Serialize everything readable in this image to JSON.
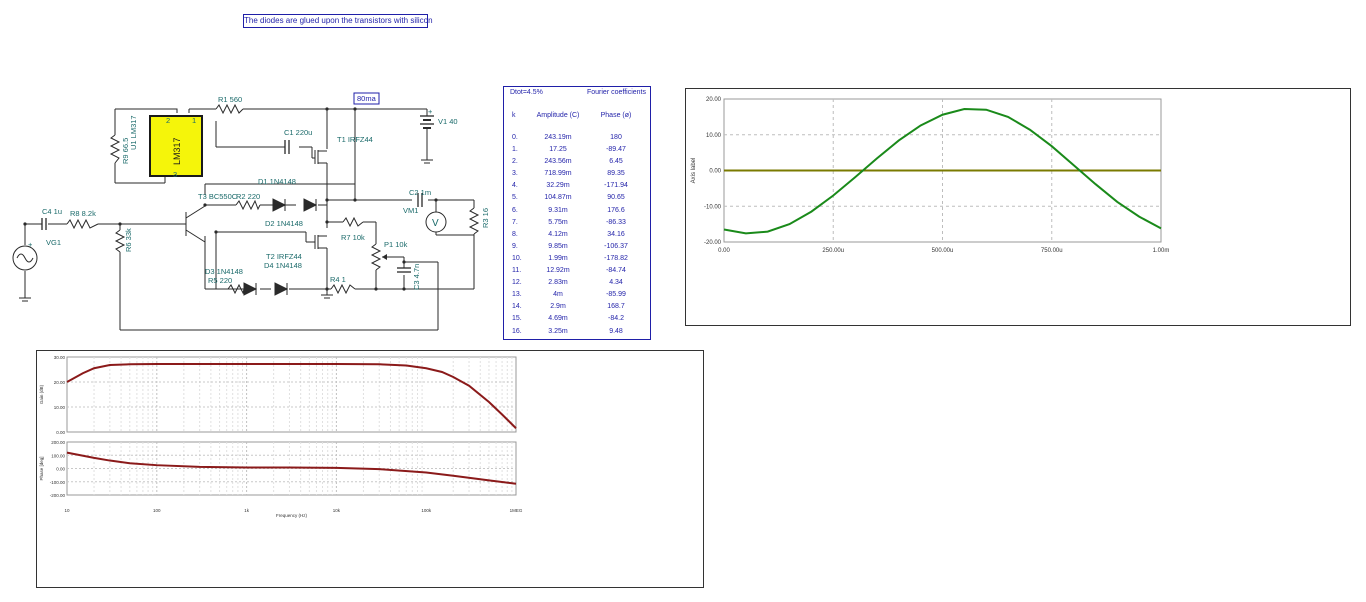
{
  "note": "The diodes are glued upon the transistors with silicon",
  "schematic": {
    "current_label": "80ma",
    "ic_label": "LM317",
    "labels": {
      "u1": "U1 LM317",
      "r9": "R9 66.5",
      "r1": "R1 560",
      "c1": "C1 220u",
      "t1": "T1 IRFZ44",
      "v1": "V1 40",
      "d1": "D1 1N4148",
      "t3": "T3 BC550C",
      "r2": "R2 220",
      "c2": "C2 1m",
      "vm1": "VM1",
      "r3": "R3 16",
      "c4": "C4 1u",
      "r8": "R8 8.2k",
      "vg1": "VG1",
      "r6": "R6 33k",
      "d2": "D2 1N4148",
      "r7": "R7 10k",
      "p1": "P1 10k",
      "t2": "T2 IRFZ44",
      "d3": "D3 1N4148",
      "d4": "D4 1N4148",
      "r5": "R5 220",
      "r4": "R4 1",
      "c3": "C3 4.7n",
      "pin2": "2",
      "pin1": "1",
      "pin3": "3",
      "v1plus": "+",
      "vgplus": "+",
      "vmsym": "V"
    }
  },
  "fourier": {
    "dtot": "Dtot=4.5%",
    "title": "Fourier coefficients",
    "headers": {
      "k": "k",
      "amplitude": "Amplitude (C)",
      "phase": "Phase (ø)"
    },
    "rows": [
      {
        "k": "0.",
        "amp": "243.19m",
        "phase": "180"
      },
      {
        "k": "1.",
        "amp": "17.25",
        "phase": "-89.47"
      },
      {
        "k": "2.",
        "amp": "243.56m",
        "phase": "6.45"
      },
      {
        "k": "3.",
        "amp": "718.99m",
        "phase": "89.35"
      },
      {
        "k": "4.",
        "amp": "32.29m",
        "phase": "-171.94"
      },
      {
        "k": "5.",
        "amp": "104.87m",
        "phase": "90.65"
      },
      {
        "k": "6.",
        "amp": "9.31m",
        "phase": "176.6"
      },
      {
        "k": "7.",
        "amp": "5.75m",
        "phase": "-86.33"
      },
      {
        "k": "8.",
        "amp": "4.12m",
        "phase": "34.16"
      },
      {
        "k": "9.",
        "amp": "9.85m",
        "phase": "-106.37"
      },
      {
        "k": "10.",
        "amp": "1.99m",
        "phase": "-178.82"
      },
      {
        "k": "11.",
        "amp": "12.92m",
        "phase": "-84.74"
      },
      {
        "k": "12.",
        "amp": "2.83m",
        "phase": "4.34"
      },
      {
        "k": "13.",
        "amp": "4m",
        "phase": "-85.99"
      },
      {
        "k": "14.",
        "amp": "2.9m",
        "phase": "168.7"
      },
      {
        "k": "15.",
        "amp": "4.69m",
        "phase": "-84.2"
      },
      {
        "k": "16.",
        "amp": "3.25m",
        "phase": "9.48"
      }
    ]
  },
  "chart_data": [
    {
      "type": "line",
      "ylabel": "Axis label",
      "xlim": [
        0,
        1000
      ],
      "ylim": [
        -20,
        20
      ],
      "x_ticks": [
        "0.00",
        "250.00u",
        "500.00u",
        "750.00u",
        "1.00m"
      ],
      "y_ticks": [
        "20.00",
        "10.00",
        "0.00",
        "-10.00",
        "-20.00"
      ],
      "grid": true,
      "colors": {
        "signal": "#1a8a1a",
        "zero": "#7a7a00"
      },
      "series": [
        {
          "x": [
            0,
            50,
            100,
            150,
            200,
            250,
            300,
            350,
            400,
            450,
            500,
            550,
            600,
            650,
            700,
            750,
            800,
            850,
            900,
            950,
            1000
          ],
          "y": [
            -16.5,
            -17.6,
            -17.1,
            -15.0,
            -11.5,
            -7.0,
            -1.9,
            3.4,
            8.4,
            12.6,
            15.6,
            17.2,
            17.0,
            15.0,
            11.4,
            6.8,
            1.5,
            -3.8,
            -8.8,
            -12.9,
            -16.2
          ]
        },
        {
          "x": [
            0,
            1000
          ],
          "y": [
            0,
            0
          ]
        }
      ]
    },
    {
      "type": "line",
      "ylabel": "Gain (dB)",
      "xscale": "log",
      "xlim": [
        10,
        1000000
      ],
      "ylim": [
        0,
        30
      ],
      "y_ticks": [
        "30.00",
        "20.00",
        "10.00",
        "0.00"
      ],
      "grid": true,
      "color": "#8b1a1a",
      "series": [
        {
          "x": [
            10,
            15,
            20,
            30,
            50,
            100,
            1000,
            10000,
            30000,
            60000,
            100000,
            150000,
            200000,
            300000,
            500000,
            700000,
            1000000
          ],
          "y": [
            20.0,
            23.5,
            25.5,
            26.8,
            27.1,
            27.2,
            27.2,
            27.2,
            27.1,
            26.6,
            25.5,
            24.0,
            22.0,
            18.5,
            12.0,
            7.0,
            1.5
          ]
        }
      ]
    },
    {
      "type": "line",
      "ylabel": "Phase [deg]",
      "xlabel": "Frequency (Hz)",
      "xscale": "log",
      "xlim": [
        10,
        1000000
      ],
      "ylim": [
        -200,
        200
      ],
      "x_ticks": [
        "10",
        "100",
        "1k",
        "10k",
        "100k",
        "1MEG"
      ],
      "y_ticks": [
        "200.00",
        "100.00",
        "0.00",
        "-100.00",
        "-200.00"
      ],
      "grid": true,
      "color": "#8b1a1a",
      "series": [
        {
          "x": [
            10,
            20,
            30,
            50,
            100,
            300,
            1000,
            3000,
            10000,
            30000,
            100000,
            200000,
            500000,
            1000000
          ],
          "y": [
            120,
            80,
            60,
            40,
            25,
            12,
            8,
            8,
            5,
            -5,
            -30,
            -55,
            -90,
            -115
          ]
        }
      ]
    }
  ]
}
